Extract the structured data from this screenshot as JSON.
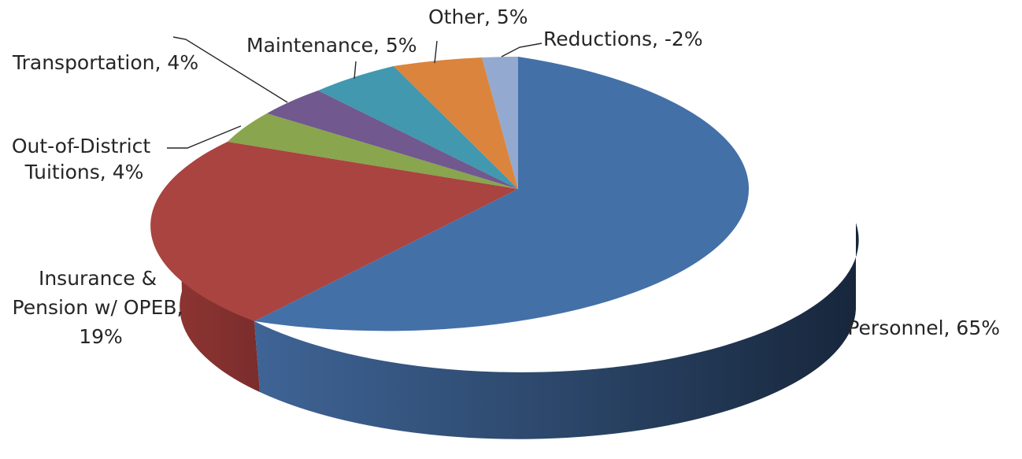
{
  "chart_data": {
    "type": "pie",
    "style": "3d",
    "title": "",
    "slices": [
      {
        "label": "Personnel, 65%",
        "name": "Personnel",
        "value": 65,
        "color": "#4470A8"
      },
      {
        "label": "Insurance & Pension w/ OPEB, 19%",
        "name": "Insurance & Pension w/ OPEB",
        "value": 19,
        "color": "#A94441"
      },
      {
        "label": "Out-of-District Tuitions, 4%",
        "name": "Out-of-District Tuitions",
        "value": 4,
        "color": "#89A54E"
      },
      {
        "label": "Transportation, 4%",
        "name": "Transportation",
        "value": 4,
        "color": "#71588F"
      },
      {
        "label": "Maintenance, 5%",
        "name": "Maintenance",
        "value": 5,
        "color": "#4198AF"
      },
      {
        "label": "Other, 5%",
        "name": "Other",
        "value": 5,
        "color": "#DB843D"
      },
      {
        "label": "Reductions, -2%",
        "name": "Reductions",
        "value": -2,
        "color": "#93A9CF"
      }
    ]
  }
}
